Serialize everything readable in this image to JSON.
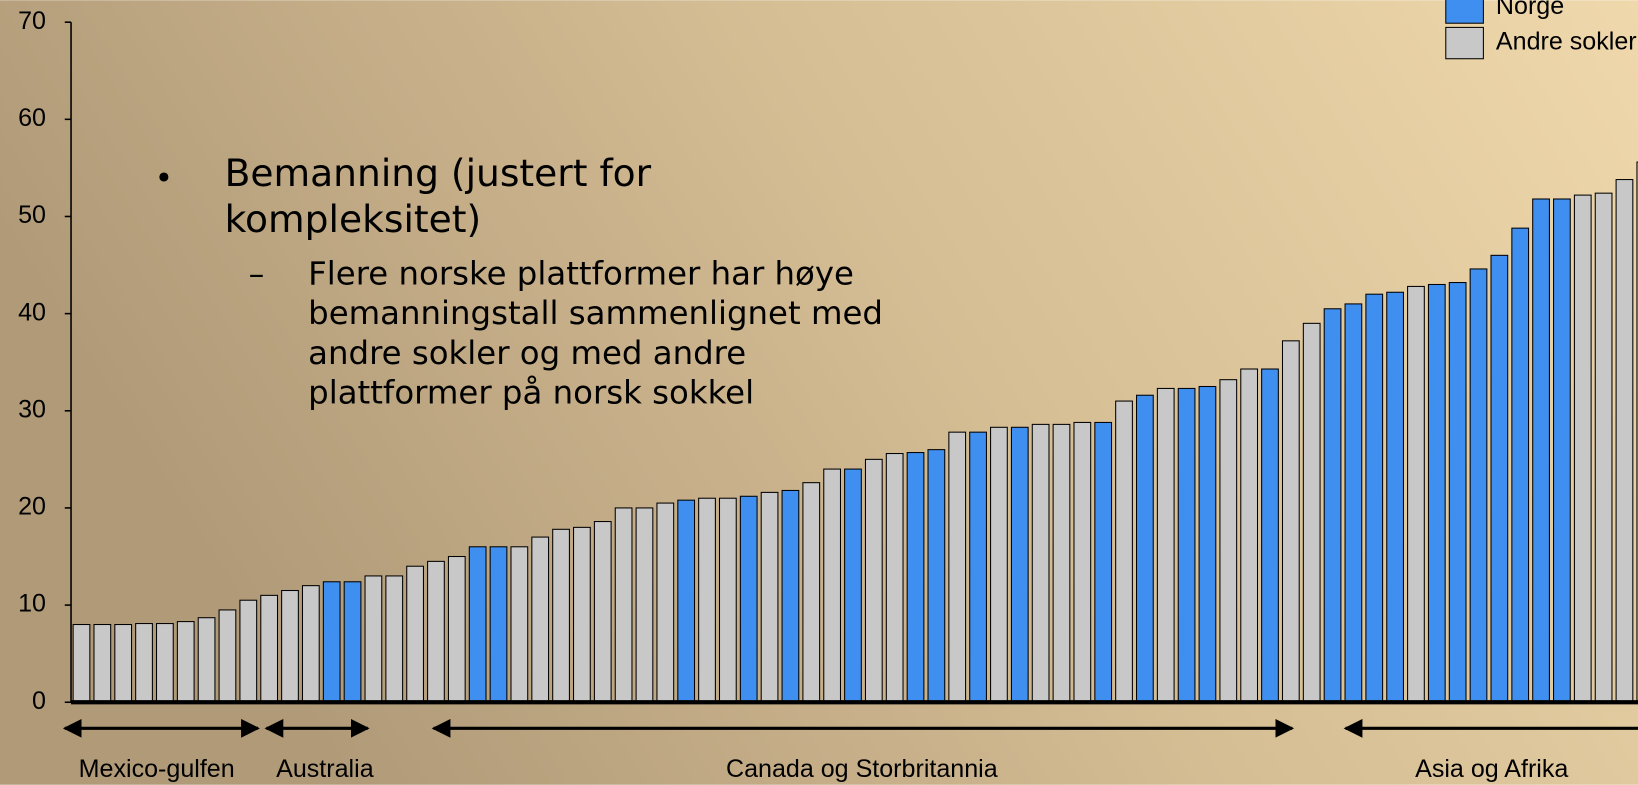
{
  "chart_data": {
    "type": "bar",
    "ylim": [
      0,
      70
    ],
    "yticks": [
      0,
      10,
      20,
      30,
      40,
      50,
      60,
      70
    ],
    "categories": [
      null,
      null,
      null,
      null,
      null,
      null,
      null,
      null,
      null,
      null,
      null,
      null,
      null,
      null,
      null,
      null,
      null,
      null,
      null,
      null,
      null,
      null,
      null,
      null,
      null,
      null,
      null,
      null,
      null,
      null,
      null,
      null,
      null,
      null,
      null,
      null,
      null,
      null,
      null,
      null,
      null,
      null,
      null,
      null,
      null,
      null,
      null,
      null,
      null,
      null,
      null,
      null,
      null,
      null,
      null,
      null,
      null,
      null,
      null,
      null,
      null,
      null,
      null,
      null,
      null,
      null,
      null,
      null,
      null,
      null,
      null,
      null,
      null,
      null,
      null,
      null
    ],
    "series": [
      {
        "name": "Norge",
        "color": "#3f8ff0",
        "values": [
          null,
          null,
          null,
          null,
          null,
          null,
          null,
          null,
          null,
          null,
          null,
          null,
          12.4,
          12.4,
          null,
          null,
          null,
          null,
          null,
          16,
          16,
          null,
          null,
          null,
          null,
          null,
          null,
          null,
          null,
          20.8,
          null,
          null,
          21.2,
          null,
          21.8,
          null,
          null,
          24,
          null,
          null,
          25.7,
          26,
          null,
          27.8,
          null,
          28.3,
          null,
          null,
          null,
          28.8,
          null,
          31.6,
          null,
          32.3,
          32.5,
          null,
          null,
          34.3,
          null,
          null,
          40.5,
          41,
          42,
          42.2,
          null,
          43,
          43.2,
          44.6,
          46,
          48.8,
          51.8,
          51.8,
          null,
          null,
          null,
          null
        ]
      },
      {
        "name": "Andre sokler",
        "color": "#c8c8c8",
        "values": [
          8,
          8,
          8,
          8.1,
          8.1,
          8.3,
          8.7,
          9.5,
          10.5,
          11,
          11.5,
          12,
          null,
          null,
          13,
          13,
          14,
          14.5,
          15,
          null,
          null,
          16,
          17,
          17.8,
          18,
          18.6,
          20,
          20,
          20.5,
          null,
          21,
          21,
          null,
          21.6,
          null,
          22.6,
          24,
          null,
          25,
          25.6,
          null,
          null,
          27.8,
          null,
          28.3,
          null,
          28.6,
          28.6,
          28.8,
          null,
          31,
          null,
          32.3,
          null,
          null,
          33.2,
          34.3,
          null,
          37.2,
          39,
          null,
          null,
          null,
          null,
          42.8,
          null,
          null,
          null,
          null,
          null,
          null,
          null,
          52.2,
          52.4,
          53.8,
          55.6
        ]
      }
    ],
    "regions": [
      "Mexico-gulfen",
      "Australia",
      "Canada og Storbritannia",
      "Asia og Afrika"
    ],
    "bullet": {
      "lines": [
        "Bemanning (justert for",
        "kompleksitet)"
      ],
      "sub": [
        "Flere norske plattformer har høye",
        "bemanningstall sammenlignet med",
        "andre sokler og med andre",
        "plattformer på norsk sokkel"
      ]
    }
  }
}
